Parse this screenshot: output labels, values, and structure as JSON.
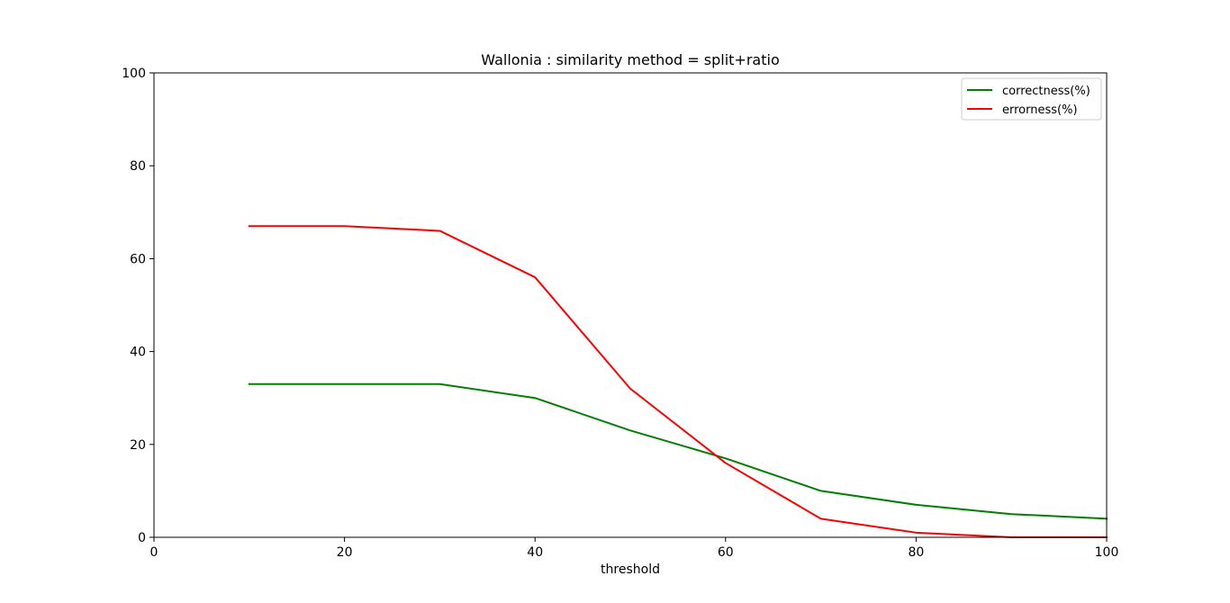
{
  "chart_data": {
    "type": "line",
    "title": "Wallonia : similarity method = split+ratio",
    "xlabel": "threshold",
    "ylabel": "",
    "xlim": [
      0,
      100
    ],
    "ylim": [
      0,
      100
    ],
    "xticks": [
      0,
      20,
      40,
      60,
      80,
      100
    ],
    "yticks": [
      0,
      20,
      40,
      60,
      80,
      100
    ],
    "grid": false,
    "legend_position": "top-right",
    "x": [
      10,
      20,
      30,
      40,
      50,
      60,
      70,
      80,
      90,
      100
    ],
    "series": [
      {
        "name": "correctness(%)",
        "color": "#008000",
        "values": [
          33,
          33,
          33,
          30,
          23,
          17,
          10,
          7,
          5,
          4
        ]
      },
      {
        "name": "errorness(%)",
        "color": "#ff0000",
        "values": [
          67,
          67,
          66,
          56,
          32,
          16,
          4,
          1,
          0,
          0
        ]
      }
    ]
  }
}
